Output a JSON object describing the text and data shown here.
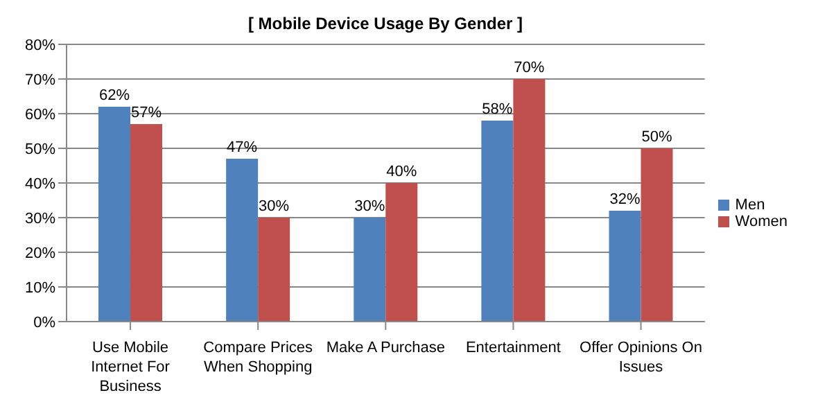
{
  "chart_data": {
    "type": "bar",
    "title": "[ Mobile Device Usage By Gender ]",
    "categories": [
      "Use Mobile Internet For Business",
      "Compare Prices When Shopping",
      "Make A Purchase",
      "Entertainment",
      "Offer Opinions On Issues"
    ],
    "series": [
      {
        "name": "Men",
        "color": "#4f81bd",
        "values": [
          62,
          47,
          30,
          58,
          32
        ],
        "value_labels": [
          "62%",
          "47%",
          "30%",
          "58%",
          "32%"
        ]
      },
      {
        "name": "Women",
        "color": "#c0504d",
        "values": [
          57,
          30,
          40,
          70,
          50
        ],
        "value_labels": [
          "57%",
          "30%",
          "40%",
          "70%",
          "50%"
        ]
      }
    ],
    "ylim": [
      0,
      80
    ],
    "yticks": [
      {
        "value": 0,
        "label": "0%"
      },
      {
        "value": 10,
        "label": "10%"
      },
      {
        "value": 20,
        "label": "20%"
      },
      {
        "value": 30,
        "label": "30%"
      },
      {
        "value": 40,
        "label": "40%"
      },
      {
        "value": 50,
        "label": "50%"
      },
      {
        "value": 60,
        "label": "60%"
      },
      {
        "value": 70,
        "label": "70%"
      },
      {
        "value": 80,
        "label": "80%"
      }
    ],
    "grid": "y",
    "legend": "right"
  }
}
